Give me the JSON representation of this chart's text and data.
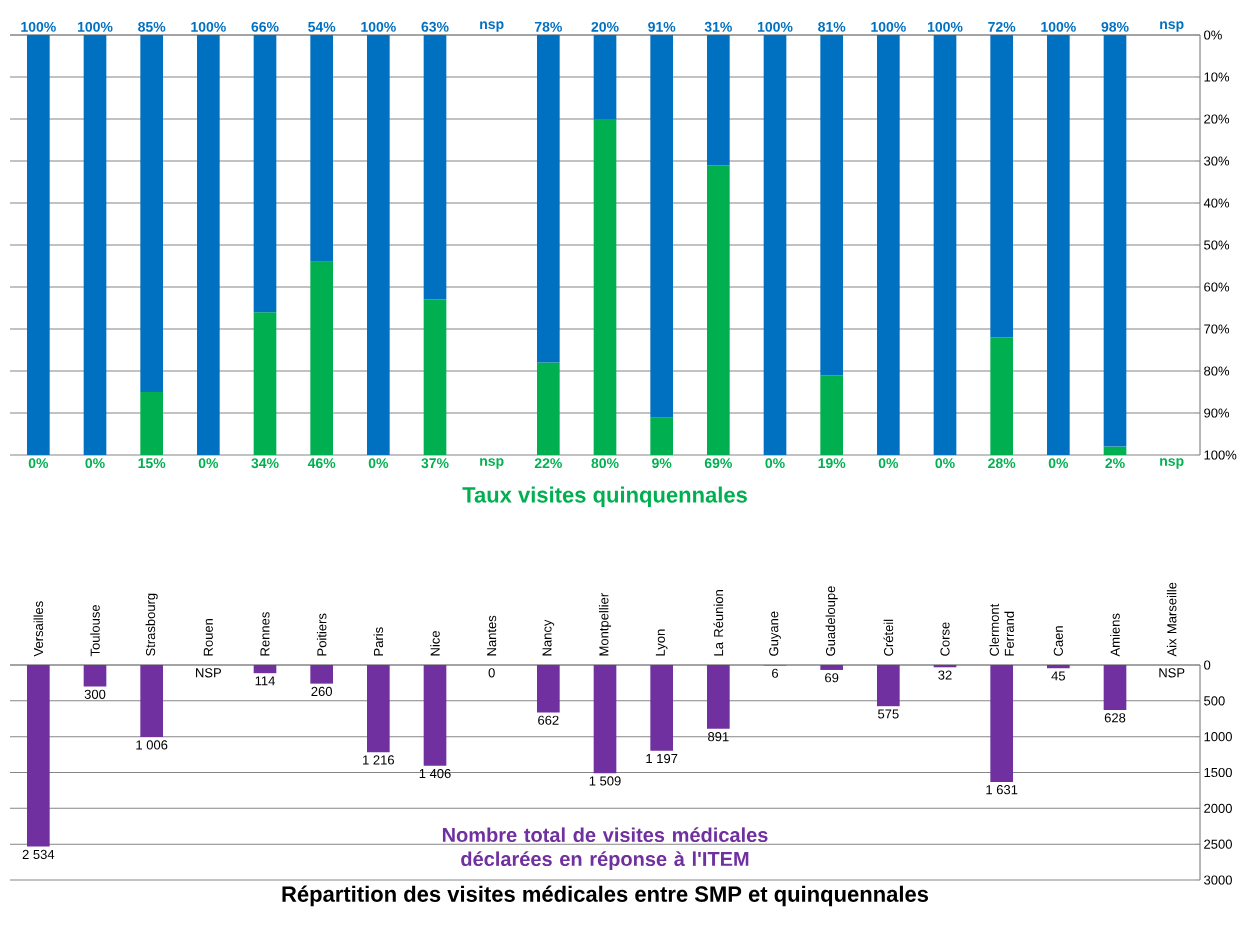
{
  "chart_data": [
    {
      "type": "bar",
      "title": "Répartition des visites médicales entre SMP et quinquennales",
      "categories": [
        "Versailles",
        "Toulouse",
        "Strasbourg",
        "Rouen",
        "Rennes",
        "Poitiers",
        "Paris",
        "Nice",
        "Nantes",
        "Nancy",
        "Montpellier",
        "Lyon",
        "La Réunion",
        "Guyane",
        "Guadeloupe",
        "Créteil",
        "Corse",
        "Clermont Ferrand",
        "Caen",
        "Amiens",
        "Aix Marseille"
      ],
      "series": [
        {
          "name": "Nombre total de visites médicales déclarées en réponse à l'ITEM",
          "color": "#7030a0",
          "values": [
            2534,
            300,
            1006,
            null,
            114,
            260,
            1216,
            1406,
            0,
            662,
            1509,
            1197,
            891,
            6,
            69,
            575,
            32,
            1631,
            45,
            628,
            null
          ],
          "value_labels": [
            "2 534",
            "300",
            "1 006",
            "NSP",
            "114",
            "260",
            "1 216",
            "1 406",
            "0",
            "662",
            "1 509",
            "1 197",
            "891",
            "6",
            "69",
            "575",
            "32",
            "1 631",
            "45",
            "628",
            "NSP"
          ]
        }
      ],
      "ylim": [
        3000,
        0
      ],
      "yticks": [
        0,
        500,
        1000,
        1500,
        2000,
        2500,
        3000
      ],
      "grid": "y"
    },
    {
      "type": "bar",
      "stacked": true,
      "categories": [
        null,
        null,
        null,
        null,
        null,
        null,
        null,
        null,
        null,
        null,
        null,
        null,
        null,
        null,
        null,
        null,
        null,
        null,
        null,
        null,
        null
      ],
      "series": [
        {
          "color": "#0070c0",
          "values": [
            100,
            100,
            85,
            100,
            66,
            54,
            100,
            63,
            null,
            78,
            20,
            91,
            31,
            100,
            81,
            100,
            100,
            72,
            100,
            98,
            null
          ],
          "value_labels": [
            "100%",
            "100%",
            "85%",
            "100%",
            "66%",
            "54%",
            "100%",
            "63%",
            "nsp",
            "78%",
            "20%",
            "91%",
            "31%",
            "100%",
            "81%",
            "100%",
            "100%",
            "72%",
            "100%",
            "98%",
            "nsp"
          ]
        },
        {
          "name": "Taux visites quinquennales",
          "color": "#00b050",
          "values": [
            0,
            0,
            15,
            0,
            34,
            46,
            0,
            37,
            null,
            22,
            80,
            9,
            69,
            0,
            19,
            0,
            0,
            28,
            0,
            2,
            null
          ],
          "value_labels": [
            "0%",
            "0%",
            "15%",
            "0%",
            "34%",
            "46%",
            "0%",
            "37%",
            "nsp",
            "22%",
            "80%",
            "9%",
            "69%",
            "0%",
            "19%",
            "0%",
            "0%",
            "28%",
            "0%",
            "2%",
            "nsp"
          ]
        }
      ],
      "ylim": [
        100,
        0
      ],
      "yticks": [
        {
          "value": 0,
          "label": "0%"
        },
        {
          "value": 10,
          "label": "10%"
        },
        {
          "value": 20,
          "label": "20%"
        },
        {
          "value": 30,
          "label": "30%"
        },
        {
          "value": 40,
          "label": "40%"
        },
        {
          "value": 50,
          "label": "50%"
        },
        {
          "value": 60,
          "label": "60%"
        },
        {
          "value": 70,
          "label": "70%"
        },
        {
          "value": 80,
          "label": "80%"
        },
        {
          "value": 90,
          "label": "90%"
        },
        {
          "value": 100,
          "label": "100%"
        }
      ],
      "grid": "y",
      "tick_labels": "y"
    }
  ]
}
